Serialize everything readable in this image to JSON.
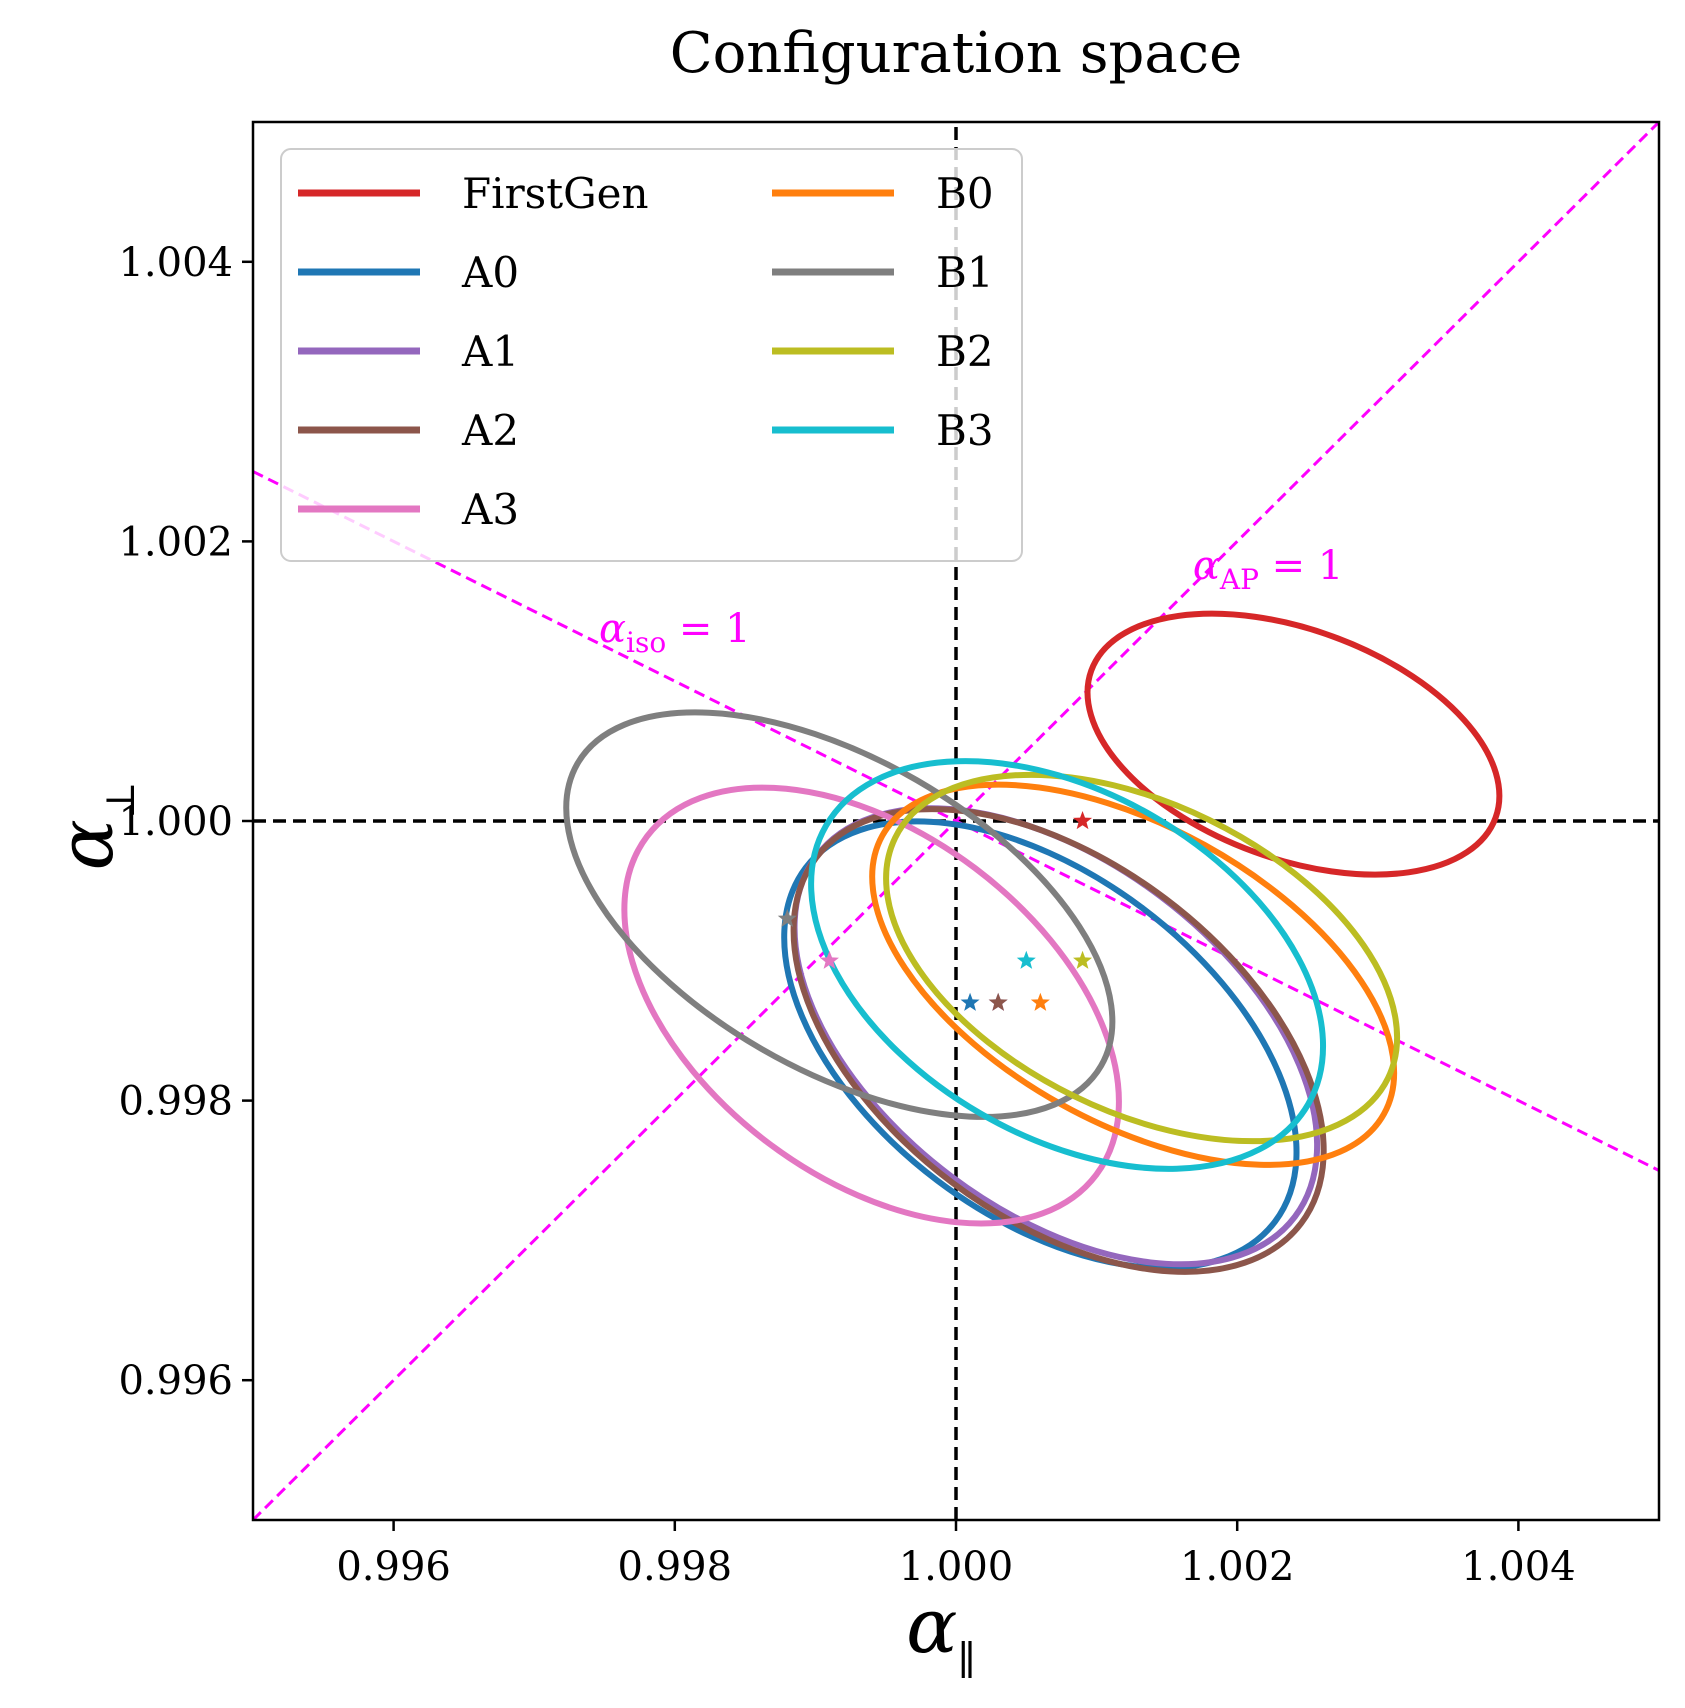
{
  "chart_data": {
    "type": "scatter",
    "title": "Configuration space",
    "xlabel": {
      "symbol": "α",
      "subscript": "∥"
    },
    "ylabel": {
      "symbol": "α",
      "subscript": "⊥"
    },
    "xlim": [
      0.995,
      1.005
    ],
    "ylim": [
      0.995,
      1.005
    ],
    "xticks": [
      0.996,
      0.998,
      1.0,
      1.002,
      1.004
    ],
    "yticks": [
      0.996,
      0.998,
      1.0,
      1.002,
      1.004
    ],
    "xtick_labels": [
      "0.996",
      "0.998",
      "1.000",
      "1.002",
      "1.004"
    ],
    "ytick_labels": [
      "0.996",
      "0.998",
      "1.000",
      "1.002",
      "1.004"
    ],
    "grid": false,
    "legend_position": "top-left",
    "reference_lines": [
      {
        "name": "alpha-parallel-1",
        "kind": "vertical",
        "x": 1.0,
        "color": "#000000",
        "style": "dashed"
      },
      {
        "name": "alpha-perp-1",
        "kind": "horizontal",
        "y": 1.0,
        "color": "#000000",
        "style": "dashed"
      },
      {
        "name": "alpha-ap-1",
        "kind": "line",
        "points": [
          [
            0.995,
            0.995
          ],
          [
            1.005,
            1.005
          ]
        ],
        "color": "#ff00ff",
        "style": "dashed"
      },
      {
        "name": "alpha-iso-1",
        "kind": "line",
        "points": [
          [
            0.995,
            1.0025
          ],
          [
            1.005,
            0.9975
          ]
        ],
        "color": "#ff00ff",
        "style": "dashed"
      }
    ],
    "annotations": [
      {
        "name": "alpha-iso-annotation",
        "symbol": "α",
        "subscript": "iso",
        "text": "= 1",
        "x": 0.998,
        "y": 1.00128
      },
      {
        "name": "alpha-ap-annotation",
        "symbol": "α",
        "subscript": "AP",
        "text": "= 1",
        "x": 1.00222,
        "y": 1.00173
      }
    ],
    "series": [
      {
        "name": "FirstGen",
        "color": "#d62728",
        "center": [
          1.0024,
          1.00055
        ],
        "rx": 0.00153,
        "ry": 0.00082,
        "angle": -20,
        "best_fit": [
          1.0009,
          1.0
        ]
      },
      {
        "name": "A0",
        "color": "#1f77b4",
        "center": [
          1.0006,
          0.9984
        ],
        "rx": 0.00209,
        "ry": 0.00122,
        "angle": -37,
        "best_fit": [
          1.0001,
          0.9987
        ]
      },
      {
        "name": "A1",
        "color": "#9467bd",
        "center": [
          1.00071,
          0.99846
        ],
        "rx": 0.00213,
        "ry": 0.00125,
        "angle": -37,
        "best_fit": [
          1.0003,
          0.9987
        ]
      },
      {
        "name": "A2",
        "color": "#8c564b",
        "center": [
          1.00073,
          0.99843
        ],
        "rx": 0.00216,
        "ry": 0.00127,
        "angle": -37,
        "best_fit": [
          1.0003,
          0.9987
        ]
      },
      {
        "name": "A3",
        "color": "#e377c2",
        "center": [
          0.9994,
          0.99868
        ],
        "rx": 0.002,
        "ry": 0.00123,
        "angle": -37,
        "best_fit": [
          0.9991,
          0.999
        ]
      },
      {
        "name": "B0",
        "color": "#ff7f0e",
        "center": [
          1.00126,
          0.9989
        ],
        "rx": 0.00204,
        "ry": 0.00106,
        "angle": -29,
        "best_fit": [
          1.0006,
          0.9987
        ]
      },
      {
        "name": "B1",
        "color": "#7f7f7f",
        "center": [
          0.99917,
          0.99933
        ],
        "rx": 0.00215,
        "ry": 0.00111,
        "angle": -30,
        "best_fit": [
          0.9988,
          0.9993
        ]
      },
      {
        "name": "B2",
        "color": "#bcbd22",
        "center": [
          1.00132,
          0.99902
        ],
        "rx": 0.00195,
        "ry": 0.0011,
        "angle": -26,
        "best_fit": [
          1.0009,
          0.999
        ]
      },
      {
        "name": "B3",
        "color": "#17becf",
        "center": [
          1.00079,
          0.99897
        ],
        "rx": 0.00198,
        "ry": 0.00123,
        "angle": -30,
        "best_fit": [
          1.0005,
          0.999
        ]
      }
    ]
  }
}
